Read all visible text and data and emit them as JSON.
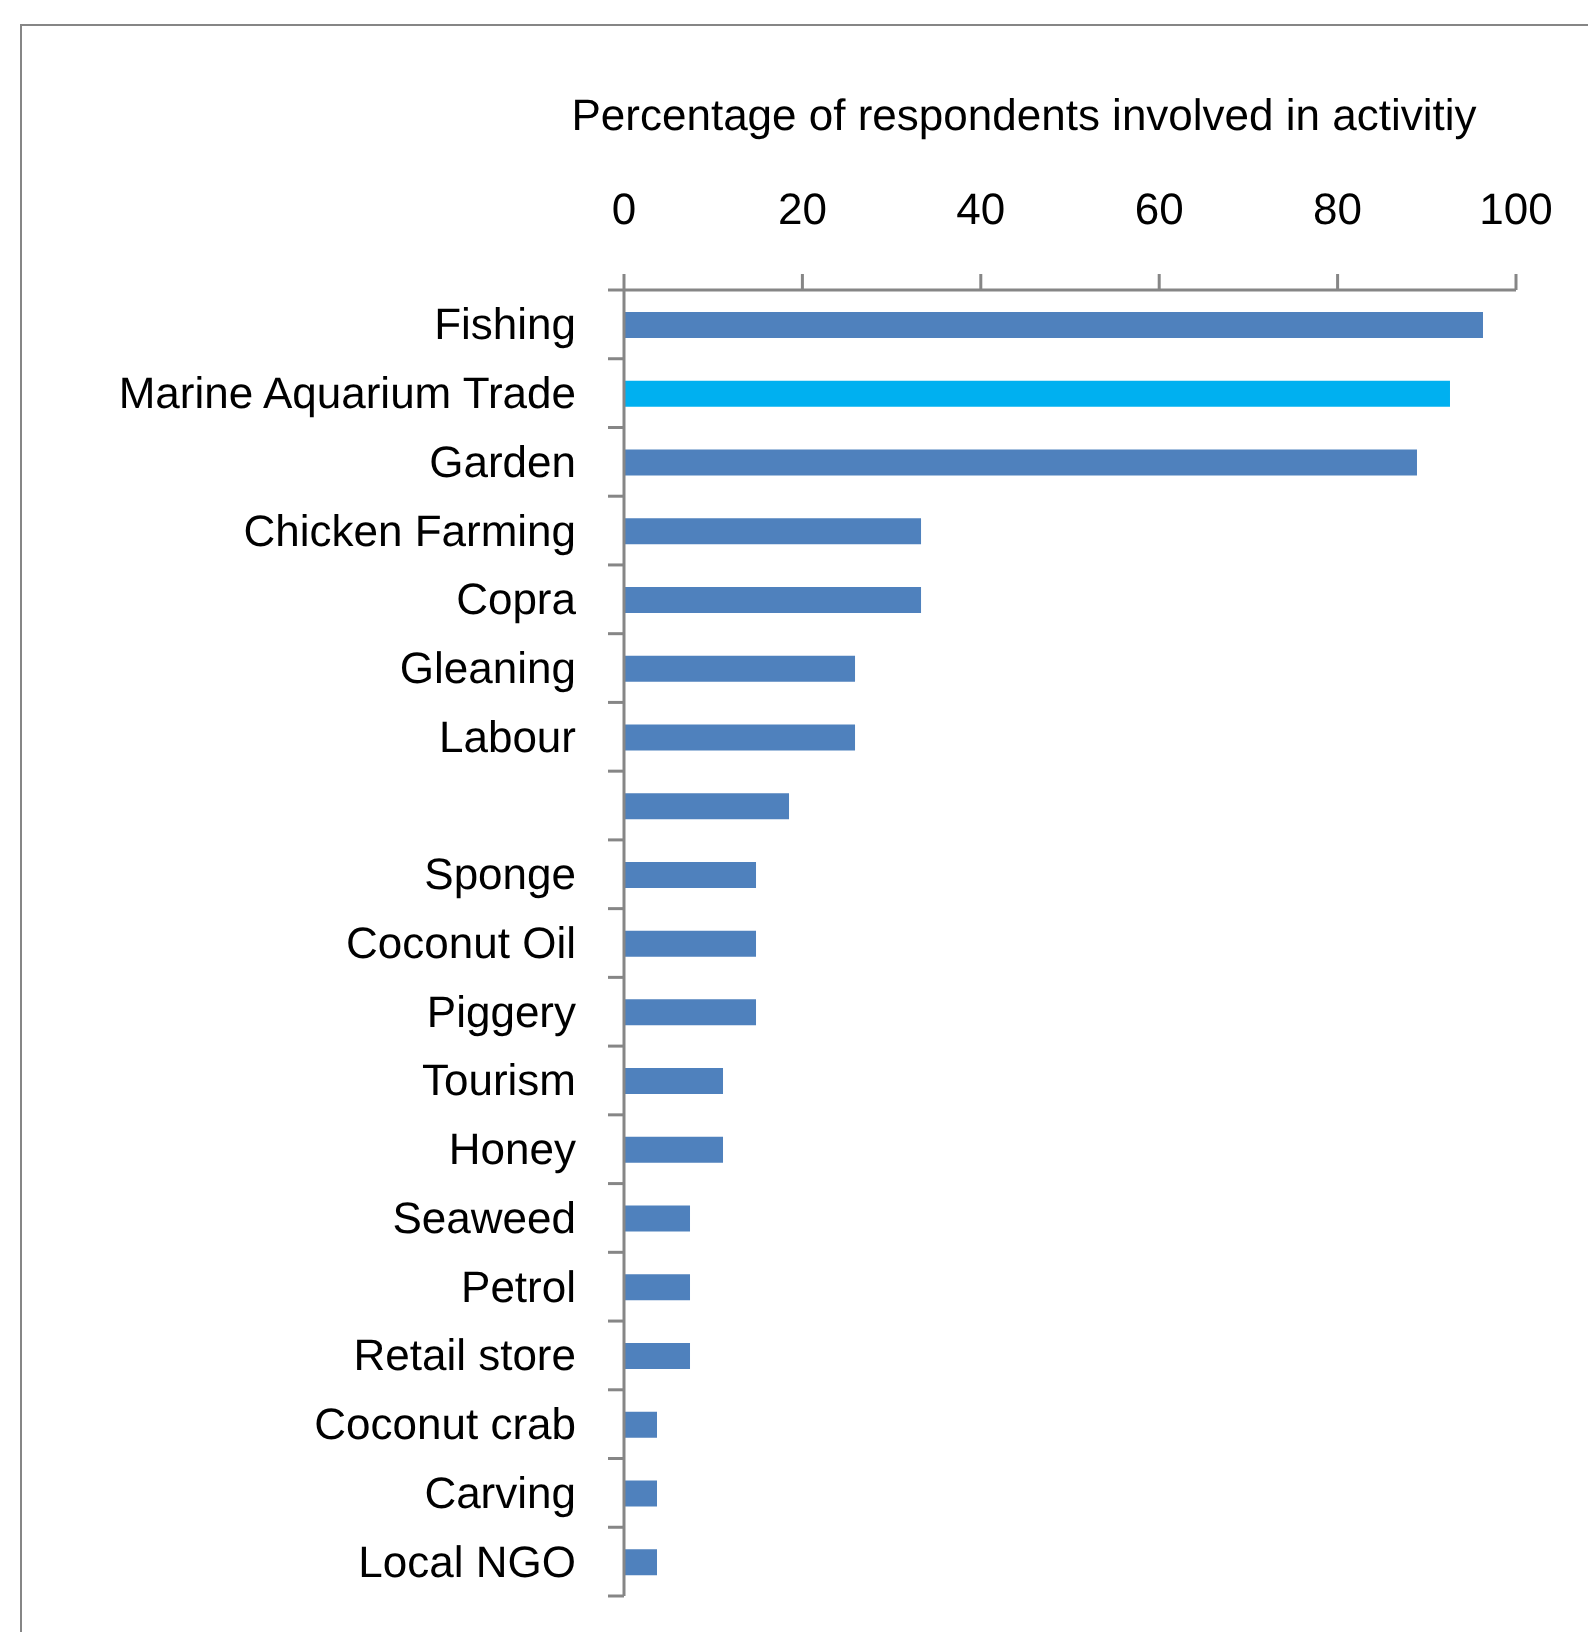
{
  "chart_data": {
    "type": "bar",
    "orientation": "horizontal",
    "xlabel": "Percentage of respondents involved in activitiy",
    "categories": [
      "Fishing",
      "Marine Aquarium Trade",
      "Garden",
      "Chicken Farming",
      "Copra",
      "Gleaning",
      "Labour",
      null,
      "Sponge",
      "Coconut Oil",
      "Piggery",
      "Tourism",
      "Honey",
      "Seaweed",
      "Petrol",
      "Retail store",
      "Coconut crab",
      "Carving",
      "Local NGO"
    ],
    "values": [
      96.3,
      92.6,
      88.9,
      33.3,
      33.3,
      25.9,
      25.9,
      18.5,
      14.8,
      14.8,
      14.8,
      11.1,
      11.1,
      7.4,
      7.4,
      7.4,
      3.7,
      3.7,
      3.7
    ],
    "colors": [
      "#4f81bd",
      "#00b0f0",
      "#4f81bd",
      "#4f81bd",
      "#4f81bd",
      "#4f81bd",
      "#4f81bd",
      "#4f81bd",
      "#4f81bd",
      "#4f81bd",
      "#4f81bd",
      "#4f81bd",
      "#4f81bd",
      "#4f81bd",
      "#4f81bd",
      "#4f81bd",
      "#4f81bd",
      "#4f81bd",
      "#4f81bd"
    ],
    "xlim": [
      0,
      100
    ],
    "xticks": [
      0,
      20,
      40,
      60,
      80,
      100
    ]
  }
}
